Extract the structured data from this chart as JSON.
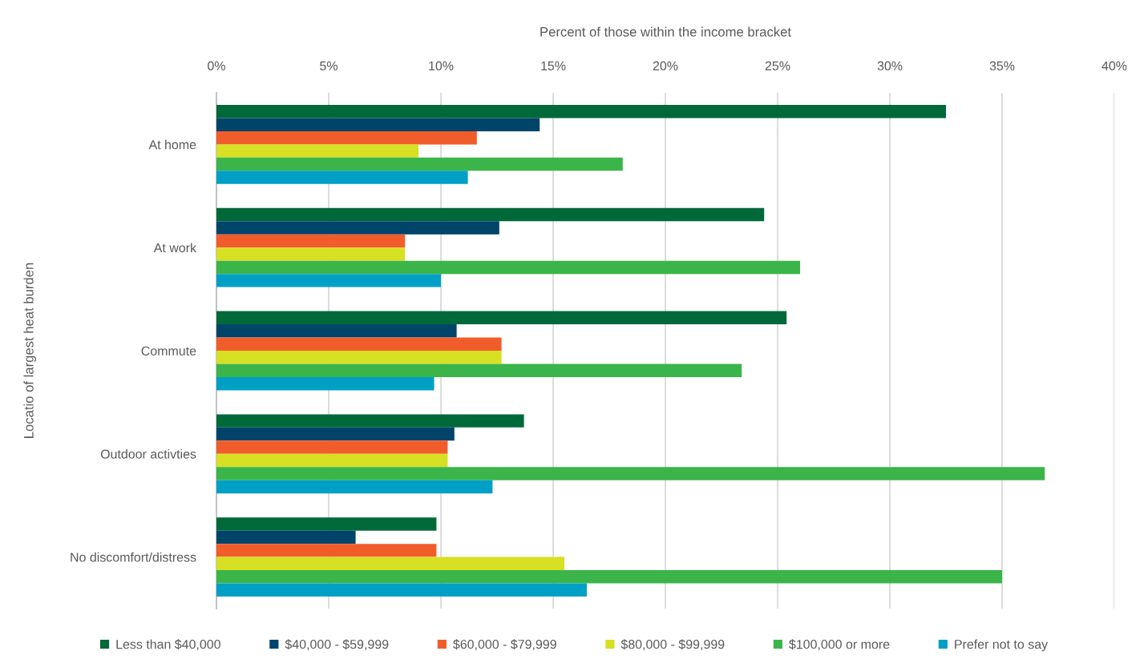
{
  "chart_data": {
    "type": "bar",
    "orientation": "horizontal",
    "xlabel": "Percent of those within the income bracket",
    "ylabel": "Locatio of largest heat burden",
    "categories": [
      "At home",
      "At work",
      "Commute",
      "Outdoor activties",
      "No discomfort/distress"
    ],
    "series": [
      {
        "name": "Less than $40,000",
        "color": "#00693a",
        "values": [
          32.5,
          24.4,
          25.4,
          13.7,
          9.8
        ]
      },
      {
        "name": "$40,000 - $59,999",
        "color": "#00446a",
        "values": [
          14.4,
          12.6,
          10.7,
          10.6,
          6.2
        ]
      },
      {
        "name": "$60,000 - $79,999",
        "color": "#f15d2a",
        "values": [
          11.6,
          8.4,
          12.7,
          10.3,
          9.8
        ]
      },
      {
        "name": "$80,000 - $99,999",
        "color": "#d7e022",
        "values": [
          9.0,
          8.4,
          12.7,
          10.3,
          15.5
        ]
      },
      {
        "name": "$100,000 or more",
        "color": "#3bb54a",
        "values": [
          18.1,
          26.0,
          23.4,
          36.9,
          35.0
        ]
      },
      {
        "name": "Prefer not to say",
        "color": "#00a0c6",
        "values": [
          11.2,
          10.0,
          9.7,
          12.3,
          16.5
        ]
      }
    ],
    "xlim": [
      0,
      40
    ],
    "xticks": [
      {
        "value": 0,
        "label": "0%"
      },
      {
        "value": 5,
        "label": "5%"
      },
      {
        "value": 10,
        "label": "10%"
      },
      {
        "value": 15,
        "label": "15%"
      },
      {
        "value": 20,
        "label": "20%"
      },
      {
        "value": 25,
        "label": "25%"
      },
      {
        "value": 30,
        "label": "30%"
      },
      {
        "value": 35,
        "label": "35%"
      },
      {
        "value": 40,
        "label": "40%"
      }
    ],
    "grid": "x",
    "legend": "bottom"
  }
}
